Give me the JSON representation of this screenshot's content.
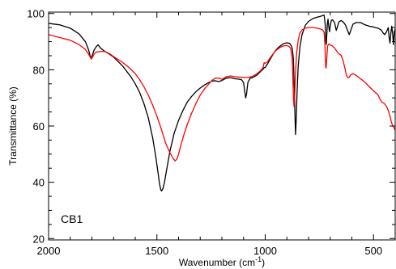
{
  "chart_data": {
    "type": "line",
    "title": "",
    "xlabel": "Wavenumber (cm",
    "xlabel_sup": "-1",
    "xlabel_close": ")",
    "ylabel": "Transmittance (%)",
    "annotation": "CB1",
    "xlim": [
      2000,
      400
    ],
    "ylim": [
      19.5,
      100.5
    ],
    "x_ticks": [
      2000,
      1500,
      1000,
      500
    ],
    "y_ticks": [
      20,
      40,
      60,
      80,
      100
    ],
    "x_minor_step": 100,
    "y_minor_step": 5,
    "grid": false,
    "legend": "none",
    "series": [
      {
        "color": "#000000",
        "points": [
          [
            2000,
            96.5
          ],
          [
            1950,
            96.0
          ],
          [
            1900,
            94.8
          ],
          [
            1860,
            92.8
          ],
          [
            1830,
            90.0
          ],
          [
            1815,
            87.0
          ],
          [
            1806,
            84.2
          ],
          [
            1800,
            84.8
          ],
          [
            1790,
            87.0
          ],
          [
            1780,
            88.2
          ],
          [
            1772,
            88.9
          ],
          [
            1760,
            87.7
          ],
          [
            1740,
            86.5
          ],
          [
            1720,
            85.6
          ],
          [
            1700,
            84.5
          ],
          [
            1680,
            83.0
          ],
          [
            1660,
            81.5
          ],
          [
            1640,
            79.5
          ],
          [
            1620,
            77.5
          ],
          [
            1600,
            75.0
          ],
          [
            1580,
            72.0
          ],
          [
            1560,
            68.0
          ],
          [
            1540,
            63.0
          ],
          [
            1520,
            56.0
          ],
          [
            1505,
            49.0
          ],
          [
            1495,
            43.5
          ],
          [
            1488,
            39.5
          ],
          [
            1482,
            37.3
          ],
          [
            1478,
            36.9
          ],
          [
            1472,
            37.8
          ],
          [
            1465,
            40.0
          ],
          [
            1455,
            44.5
          ],
          [
            1440,
            51.0
          ],
          [
            1420,
            57.5
          ],
          [
            1400,
            62.0
          ],
          [
            1380,
            65.5
          ],
          [
            1360,
            68.5
          ],
          [
            1340,
            70.5
          ],
          [
            1320,
            72.2
          ],
          [
            1300,
            73.5
          ],
          [
            1280,
            74.6
          ],
          [
            1260,
            75.5
          ],
          [
            1245,
            76.0
          ],
          [
            1230,
            76.1
          ],
          [
            1215,
            75.8
          ],
          [
            1200,
            76.2
          ],
          [
            1180,
            77.0
          ],
          [
            1160,
            77.2
          ],
          [
            1140,
            76.8
          ],
          [
            1125,
            76.7
          ],
          [
            1110,
            76.5
          ],
          [
            1100,
            75.5
          ],
          [
            1094,
            72.0
          ],
          [
            1090,
            70.0
          ],
          [
            1086,
            71.5
          ],
          [
            1080,
            75.5
          ],
          [
            1070,
            77.0
          ],
          [
            1060,
            77.2
          ],
          [
            1040,
            78.0
          ],
          [
            1020,
            79.5
          ],
          [
            1010,
            80.2
          ],
          [
            1005,
            80.8
          ],
          [
            1000,
            80.8
          ],
          [
            990,
            82.0
          ],
          [
            975,
            84.0
          ],
          [
            960,
            86.0
          ],
          [
            945,
            87.5
          ],
          [
            930,
            88.5
          ],
          [
            915,
            89.3
          ],
          [
            900,
            89.6
          ],
          [
            888,
            89.4
          ],
          [
            880,
            88.6
          ],
          [
            875,
            87.5
          ],
          [
            870,
            84.0
          ],
          [
            866,
            74.0
          ],
          [
            862,
            62.0
          ],
          [
            860,
            57.0
          ],
          [
            857,
            62.0
          ],
          [
            853,
            72.0
          ],
          [
            848,
            81.0
          ],
          [
            840,
            88.0
          ],
          [
            830,
            92.5
          ],
          [
            815,
            95.8
          ],
          [
            800,
            97.2
          ],
          [
            780,
            98.2
          ],
          [
            760,
            98.7
          ],
          [
            745,
            99.0
          ],
          [
            735,
            99.3
          ],
          [
            728,
            99.4
          ],
          [
            723,
            96.0
          ],
          [
            720,
            90.0
          ],
          [
            718,
            89.0
          ],
          [
            716,
            92.0
          ],
          [
            713,
            96.5
          ],
          [
            710,
            98.0
          ],
          [
            706,
            95.0
          ],
          [
            703,
            93.5
          ],
          [
            700,
            95.5
          ],
          [
            695,
            97.5
          ],
          [
            690,
            97.8
          ],
          [
            680,
            96.8
          ],
          [
            672,
            94.0
          ],
          [
            666,
            95.5
          ],
          [
            660,
            97.0
          ],
          [
            650,
            97.5
          ],
          [
            640,
            97.0
          ],
          [
            630,
            96.0
          ],
          [
            620,
            94.0
          ],
          [
            612,
            92.5
          ],
          [
            605,
            94.0
          ],
          [
            595,
            96.2
          ],
          [
            580,
            96.8
          ],
          [
            560,
            96.8
          ],
          [
            540,
            96.0
          ],
          [
            520,
            95.5
          ],
          [
            500,
            95.2
          ],
          [
            480,
            94.8
          ],
          [
            465,
            94.2
          ],
          [
            455,
            93.0
          ],
          [
            448,
            92.5
          ],
          [
            440,
            93.5
          ],
          [
            432,
            95.0
          ],
          [
            428,
            91.5
          ],
          [
            424,
            89.5
          ],
          [
            420,
            93.0
          ],
          [
            416,
            95.5
          ],
          [
            412,
            93.0
          ],
          [
            408,
            89.0
          ],
          [
            404,
            93.5
          ],
          [
            400,
            94.5
          ]
        ]
      },
      {
        "color": "#ff0000",
        "points": [
          [
            2000,
            92.5
          ],
          [
            1950,
            91.5
          ],
          [
            1900,
            90.5
          ],
          [
            1860,
            89.0
          ],
          [
            1830,
            87.2
          ],
          [
            1815,
            85.5
          ],
          [
            1808,
            84.5
          ],
          [
            1803,
            83.8
          ],
          [
            1798,
            84.3
          ],
          [
            1790,
            85.6
          ],
          [
            1780,
            86.3
          ],
          [
            1760,
            86.5
          ],
          [
            1740,
            86.5
          ],
          [
            1720,
            85.8
          ],
          [
            1700,
            84.7
          ],
          [
            1680,
            83.7
          ],
          [
            1660,
            82.7
          ],
          [
            1640,
            81.5
          ],
          [
            1620,
            80.2
          ],
          [
            1600,
            78.6
          ],
          [
            1580,
            76.5
          ],
          [
            1560,
            74.0
          ],
          [
            1540,
            71.0
          ],
          [
            1520,
            67.5
          ],
          [
            1500,
            63.5
          ],
          [
            1480,
            59.0
          ],
          [
            1460,
            54.0
          ],
          [
            1440,
            50.5
          ],
          [
            1425,
            48.5
          ],
          [
            1416,
            47.6
          ],
          [
            1408,
            48.2
          ],
          [
            1400,
            50.0
          ],
          [
            1390,
            53.0
          ],
          [
            1375,
            57.0
          ],
          [
            1360,
            60.5
          ],
          [
            1340,
            64.5
          ],
          [
            1320,
            68.0
          ],
          [
            1300,
            71.0
          ],
          [
            1280,
            73.2
          ],
          [
            1260,
            75.0
          ],
          [
            1245,
            76.3
          ],
          [
            1230,
            77.0
          ],
          [
            1215,
            77.1
          ],
          [
            1200,
            76.6
          ],
          [
            1180,
            77.5
          ],
          [
            1160,
            77.8
          ],
          [
            1140,
            77.5
          ],
          [
            1120,
            77.4
          ],
          [
            1100,
            77.3
          ],
          [
            1080,
            77.3
          ],
          [
            1060,
            77.6
          ],
          [
            1040,
            78.5
          ],
          [
            1020,
            79.8
          ],
          [
            1010,
            80.8
          ],
          [
            1005,
            82.5
          ],
          [
            1000,
            82.3
          ],
          [
            990,
            82.8
          ],
          [
            975,
            84.5
          ],
          [
            960,
            86.0
          ],
          [
            945,
            87.2
          ],
          [
            930,
            88.0
          ],
          [
            915,
            88.5
          ],
          [
            900,
            88.6
          ],
          [
            890,
            88.3
          ],
          [
            882,
            87.5
          ],
          [
            876,
            84.5
          ],
          [
            872,
            76.0
          ],
          [
            869,
            69.0
          ],
          [
            867,
            67.0
          ],
          [
            864,
            71.0
          ],
          [
            860,
            79.0
          ],
          [
            855,
            86.0
          ],
          [
            848,
            90.5
          ],
          [
            840,
            93.0
          ],
          [
            830,
            94.2
          ],
          [
            815,
            94.8
          ],
          [
            800,
            95.0
          ],
          [
            780,
            95.0
          ],
          [
            760,
            94.8
          ],
          [
            745,
            94.5
          ],
          [
            735,
            94.2
          ],
          [
            728,
            93.2
          ],
          [
            724,
            88.0
          ],
          [
            721,
            81.0
          ],
          [
            719,
            80.6
          ],
          [
            716,
            84.0
          ],
          [
            712,
            88.5
          ],
          [
            706,
            89.2
          ],
          [
            700,
            88.8
          ],
          [
            690,
            88.5
          ],
          [
            680,
            87.8
          ],
          [
            670,
            86.6
          ],
          [
            660,
            85.7
          ],
          [
            650,
            85.2
          ],
          [
            640,
            83.2
          ],
          [
            632,
            80.5
          ],
          [
            626,
            78.3
          ],
          [
            620,
            77.2
          ],
          [
            614,
            77.2
          ],
          [
            605,
            78.2
          ],
          [
            595,
            78.6
          ],
          [
            580,
            78.0
          ],
          [
            560,
            76.8
          ],
          [
            540,
            75.6
          ],
          [
            520,
            74.0
          ],
          [
            500,
            72.5
          ],
          [
            480,
            71.2
          ],
          [
            470,
            69.5
          ],
          [
            460,
            68.4
          ],
          [
            450,
            68.0
          ],
          [
            440,
            67.0
          ],
          [
            432,
            65.5
          ],
          [
            424,
            63.5
          ],
          [
            418,
            61.5
          ],
          [
            412,
            60.2
          ],
          [
            406,
            59.5
          ],
          [
            402,
            58.8
          ],
          [
            400,
            58.5
          ]
        ]
      }
    ]
  }
}
